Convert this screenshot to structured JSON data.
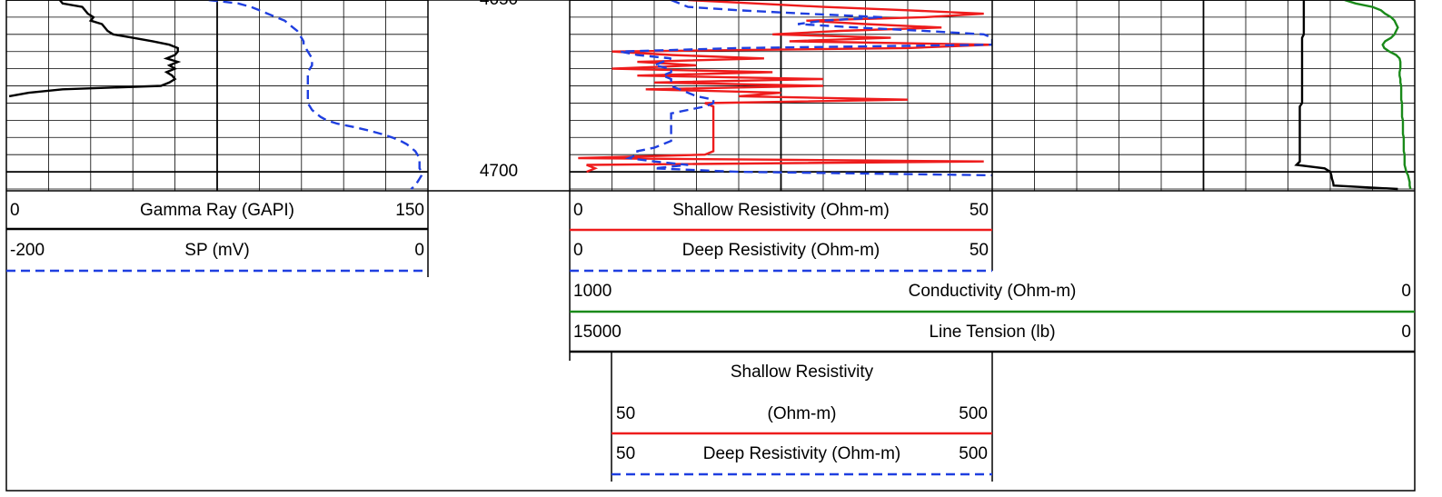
{
  "chart_data": {
    "type": "well-log",
    "depth": [
      4650,
      4651,
      4652,
      4653,
      4654,
      4655,
      4656,
      4657,
      4658,
      4659,
      4660,
      4661,
      4662,
      4663,
      4664,
      4665,
      4666,
      4667,
      4668,
      4669,
      4670,
      4671,
      4672,
      4673,
      4674,
      4675,
      4676,
      4677,
      4678,
      4679,
      4680,
      4681,
      4682,
      4683,
      4684,
      4685,
      4686,
      4687,
      4688,
      4689,
      4690,
      4691,
      4692,
      4693,
      4694,
      4695,
      4696,
      4697,
      4698,
      4699,
      4700,
      4701,
      4702,
      4703,
      4704,
      4705
    ],
    "ylim": [
      4650,
      4705
    ],
    "yticks": [
      4650,
      4700
    ],
    "yminorticks": [
      4655,
      4660,
      4665,
      4670,
      4675,
      4680,
      4685,
      4690,
      4695,
      4705
    ],
    "tracks": [
      {
        "curves": [
          {
            "name": "Gamma Ray (GAPI)",
            "left": 0,
            "right": 150,
            "color": "#000000",
            "dashed": false,
            "values": [
              19,
              20,
              27,
              28,
              29,
              31,
              30,
              34,
              35,
              36,
              38,
              45,
              52,
              58,
              61,
              61,
              60,
              57,
              61,
              58,
              60,
              57,
              59,
              60,
              58,
              55,
              20,
              8,
              1,
              null,
              null,
              null,
              null,
              null,
              null,
              null,
              null,
              null,
              null,
              null,
              null,
              null,
              null,
              null,
              null,
              null,
              null,
              null,
              null,
              null,
              null,
              null,
              null,
              null,
              null,
              null
            ]
          },
          {
            "name": "SP (mV)",
            "left": -200,
            "right": 0,
            "color": "#1f3fe0",
            "dashed": true,
            "values": [
              -104,
              -90,
              -84,
              -80,
              -76,
              -72,
              -68,
              -66,
              -64,
              -62,
              -61,
              -60,
              -59,
              -59,
              -58,
              -57,
              -56,
              -55,
              -55,
              -55,
              -56,
              -57,
              -57,
              -57,
              -57,
              -57,
              -57,
              -57,
              -57,
              -57,
              -57,
              -56,
              -55,
              -53,
              -51,
              -48,
              -43,
              -35,
              -28,
              -22,
              -17,
              -13,
              -10,
              -8,
              -6,
              -5,
              -4,
              -4,
              -4,
              -4,
              -3,
              -3,
              -4,
              -5,
              -6,
              -8
            ]
          }
        ]
      },
      {
        "curves": [
          {
            "name": "Shallow Resistivity (Ohm-m)",
            "left": 0,
            "right": 50,
            "color": "#ee1c1c",
            "dashed": false,
            "backup": {
              "name_lines": [
                "Shallow Resistivity",
                "(Ohm-m)"
              ],
              "left": 50,
              "right": 500
            },
            "values": [
              14,
              22,
              30,
              40,
              49,
              42,
              28,
              35,
              44,
              32,
              24,
              38,
              26,
              50,
              40,
              5,
              12,
              23,
              8,
              15,
              5,
              24,
              8,
              30,
              10,
              30,
              9,
              25,
              20,
              40,
              16,
              17,
              17,
              17,
              17,
              17,
              17,
              17,
              17,
              17,
              17,
              17,
              17,
              17,
              17,
              16,
              1,
              49,
              2,
              3,
              2,
              null,
              null,
              null,
              null,
              null
            ]
          },
          {
            "name": "Deep Resistivity (Ohm-m)",
            "left": 0,
            "right": 50,
            "color": "#1f3fe0",
            "dashed": true,
            "backup": {
              "name_lines": [
                "Deep Resistivity (Ohm-m)"
              ],
              "left": 50,
              "right": 500
            },
            "values": [
              12,
              13,
              14,
              20,
              28,
              37,
              30,
              27,
              34,
              42,
              49,
              50,
              50,
              50,
              20,
              6,
              8,
              12,
              11,
              10,
              12,
              12,
              11,
              12,
              12,
              12,
              13,
              14,
              15,
              17,
              17,
              16,
              14,
              12,
              12,
              12,
              12,
              12,
              12,
              12,
              12,
              12,
              11,
              10,
              8,
              8,
              7,
              10,
              14,
              10,
              20,
              50,
              null,
              null,
              null,
              null
            ]
          }
        ]
      },
      {
        "curves": [
          {
            "name": "Conductivity (Ohm-m)",
            "left": 1000,
            "right": 0,
            "color": "#1a8a1a",
            "dashed": false,
            "values": [
              83,
              70,
              50,
              40,
              35,
              28,
              24,
              22,
              20,
              22,
              24,
              28,
              35,
              38,
              36,
              30,
              22,
              18,
              17,
              17,
              17,
              18,
              18,
              17,
              17,
              16,
              16,
              16,
              16,
              16,
              15,
              15,
              15,
              15,
              15,
              14,
              14,
              14,
              14,
              14,
              13,
              13,
              13,
              13,
              13,
              12,
              12,
              12,
              12,
              11,
              10,
              8,
              7,
              6,
              6,
              5
            ]
          },
          {
            "name": "Line Tension (lb)",
            "left": 15000,
            "right": 0,
            "color": "#000000",
            "dashed": false,
            "values": [
              1970,
              1970,
              1970,
              1970,
              1970,
              1970,
              1970,
              1970,
              1970,
              1970,
              1970,
              2000,
              2000,
              2000,
              2000,
              2000,
              2000,
              2000,
              2000,
              2000,
              2000,
              2000,
              2000,
              2000,
              2000,
              2000,
              2000,
              2000,
              2000,
              2000,
              2000,
              2040,
              2040,
              2040,
              2040,
              2040,
              2040,
              2040,
              2040,
              2040,
              2040,
              2040,
              2040,
              2040,
              2040,
              2040,
              2040,
              2040,
              2100,
              1600,
              1500,
              1480,
              1470,
              1450,
              1440,
              300
            ]
          }
        ]
      }
    ]
  }
}
